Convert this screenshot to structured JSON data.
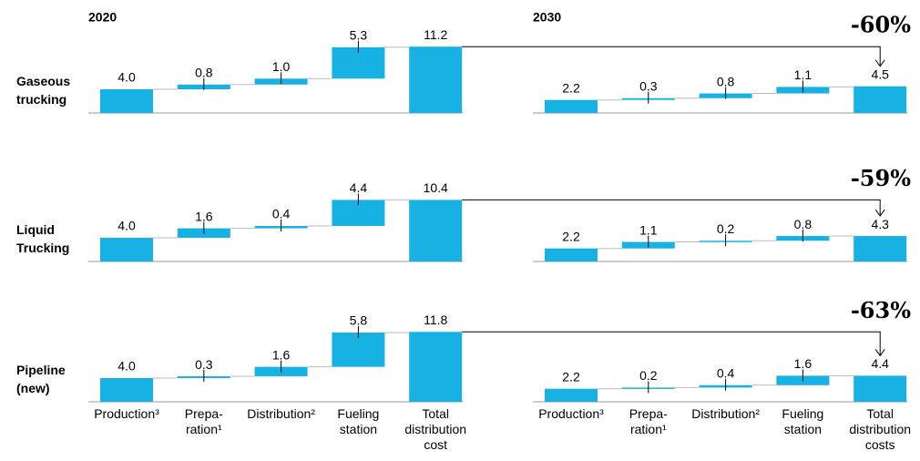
{
  "row_labels": [
    "Gaseous\ntrucking",
    "Liquid\nTrucking",
    "Pipeline\n(new)"
  ],
  "reductions": [
    "-60%",
    "-59%",
    "-63%"
  ],
  "chart_data": [
    {
      "type": "waterfall",
      "title": "2020",
      "color": "#17b2e3",
      "ylim": [
        0,
        12
      ],
      "categories": [
        "Production³",
        "Prepa-\nration¹",
        "Distribution²",
        "Fueling\nstation",
        "Total\ndistribution\ncost"
      ],
      "series": [
        {
          "values": [
            4,
            0.8,
            1,
            5.3,
            11.2
          ],
          "value_labels": [
            "4.0",
            "0.8",
            "1.0",
            "5.3",
            "11.2"
          ]
        },
        {
          "values": [
            4,
            1.6,
            0.4,
            4.4,
            10.4
          ],
          "value_labels": [
            "4.0",
            "1.6",
            "0.4",
            "4.4",
            "10.4"
          ]
        },
        {
          "values": [
            4,
            0.3,
            1.6,
            5.8,
            11.8
          ],
          "value_labels": [
            "4.0",
            "0.3",
            "1.6",
            "5.8",
            "11.8"
          ]
        }
      ]
    },
    {
      "type": "waterfall",
      "title": "2030",
      "color": "#17b2e3",
      "ylim": [
        0,
        12
      ],
      "categories": [
        "Production³",
        "Prepa-\nration¹",
        "Distribution²",
        "Fueling\nstation",
        "Total\ndistribution\ncosts"
      ],
      "series": [
        {
          "values": [
            2.2,
            0.3,
            0.8,
            1.1,
            4.5
          ],
          "value_labels": [
            "2.2",
            "0.3",
            "0.8",
            "1.1",
            "4.5"
          ]
        },
        {
          "values": [
            2.2,
            1.1,
            0.2,
            0.8,
            4.3
          ],
          "value_labels": [
            "2.2",
            "1.1",
            "0.2",
            "0.8",
            "4.3"
          ]
        },
        {
          "values": [
            2.2,
            0.2,
            0.4,
            1.6,
            4.4
          ],
          "value_labels": [
            "2.2",
            "0.2",
            "0.4",
            "1.6",
            "4.4"
          ]
        }
      ]
    }
  ]
}
